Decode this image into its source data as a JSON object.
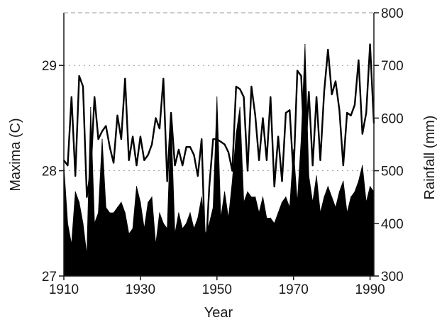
{
  "chart_data": {
    "type": "area",
    "title": "",
    "xlabel": "Year",
    "ylabel": "Maxima (C)",
    "ylabel_right": "Rainfall (mm)",
    "xlim": [
      1910,
      1991
    ],
    "ylim": [
      27,
      29.5
    ],
    "ylim_right": [
      300,
      800
    ],
    "x_ticks": [
      "1910",
      "1930",
      "1950",
      "1970",
      "1990"
    ],
    "y_ticks": [
      "27",
      "28",
      "29"
    ],
    "y_ticks_right": [
      "300",
      "400",
      "500",
      "600",
      "700",
      "800"
    ],
    "grid": "dotted horizontal at left-axis ticks",
    "legend": "none",
    "colors": {
      "area": "#000000",
      "line": "#000000",
      "axis": "#1a1a1a",
      "grid": "#9a9a9a"
    },
    "series": [
      {
        "axis": "left",
        "style": "filled area",
        "x": [
          1910,
          1911,
          1912,
          1913,
          1914,
          1915,
          1916,
          1917,
          1918,
          1919,
          1920,
          1921,
          1922,
          1923,
          1924,
          1925,
          1926,
          1927,
          1928,
          1929,
          1930,
          1931,
          1932,
          1933,
          1934,
          1935,
          1936,
          1937,
          1938,
          1939,
          1940,
          1941,
          1942,
          1943,
          1944,
          1945,
          1946,
          1947,
          1948,
          1949,
          1950,
          1951,
          1952,
          1953,
          1954,
          1955,
          1956,
          1957,
          1958,
          1959,
          1960,
          1961,
          1962,
          1963,
          1964,
          1965,
          1966,
          1967,
          1968,
          1969,
          1970,
          1971,
          1972,
          1973,
          1974,
          1975,
          1976,
          1977,
          1978,
          1979,
          1980,
          1981,
          1982,
          1983,
          1984,
          1985,
          1986,
          1987,
          1988,
          1989,
          1990,
          1991
        ],
        "values": [
          28.05,
          27.5,
          27.3,
          27.8,
          27.7,
          27.5,
          27.2,
          28.6,
          27.5,
          27.6,
          28.3,
          27.65,
          27.6,
          27.6,
          27.65,
          27.7,
          27.6,
          27.4,
          27.45,
          27.85,
          27.7,
          27.45,
          27.7,
          27.75,
          27.3,
          27.6,
          27.5,
          27.45,
          28.5,
          27.4,
          27.6,
          27.45,
          27.5,
          27.6,
          27.45,
          27.55,
          27.75,
          27.4,
          27.5,
          27.65,
          28.7,
          27.55,
          27.8,
          27.55,
          27.9,
          28.35,
          28.6,
          27.7,
          27.8,
          27.75,
          27.75,
          27.6,
          27.75,
          27.55,
          27.55,
          27.5,
          27.6,
          27.7,
          27.75,
          27.65,
          28.2,
          27.7,
          28.3,
          29.2,
          27.95,
          27.7,
          27.95,
          27.6,
          27.75,
          27.85,
          27.75,
          27.65,
          27.8,
          27.9,
          27.6,
          27.75,
          27.8,
          27.9,
          28.05,
          27.7,
          27.85,
          27.8
        ]
      },
      {
        "axis": "right",
        "style": "line",
        "x": [
          1910,
          1911,
          1912,
          1913,
          1914,
          1915,
          1916,
          1917,
          1918,
          1919,
          1920,
          1921,
          1922,
          1923,
          1924,
          1925,
          1926,
          1927,
          1928,
          1929,
          1930,
          1931,
          1932,
          1933,
          1934,
          1935,
          1936,
          1937,
          1938,
          1939,
          1940,
          1941,
          1942,
          1943,
          1944,
          1945,
          1946,
          1947,
          1948,
          1949,
          1950,
          1951,
          1952,
          1953,
          1954,
          1955,
          1956,
          1957,
          1958,
          1959,
          1960,
          1961,
          1962,
          1963,
          1964,
          1965,
          1966,
          1967,
          1968,
          1969,
          1970,
          1971,
          1972,
          1973,
          1974,
          1975,
          1976,
          1977,
          1978,
          1979,
          1980,
          1981,
          1982,
          1983,
          1984,
          1985,
          1986,
          1987,
          1988,
          1989,
          1990,
          1991
        ],
        "values": [
          520,
          510,
          640,
          490,
          680,
          660,
          450,
          500,
          640,
          560,
          575,
          585,
          545,
          515,
          605,
          560,
          675,
          520,
          565,
          510,
          565,
          520,
          530,
          550,
          600,
          580,
          675,
          480,
          610,
          510,
          540,
          510,
          545,
          545,
          530,
          490,
          560,
          330,
          470,
          560,
          560,
          555,
          550,
          535,
          500,
          660,
          655,
          640,
          500,
          660,
          605,
          520,
          600,
          520,
          640,
          470,
          565,
          480,
          610,
          615,
          490,
          690,
          680,
          520,
          650,
          510,
          640,
          520,
          650,
          730,
          645,
          670,
          615,
          510,
          610,
          605,
          625,
          710,
          570,
          610,
          740,
          590
        ]
      }
    ]
  }
}
